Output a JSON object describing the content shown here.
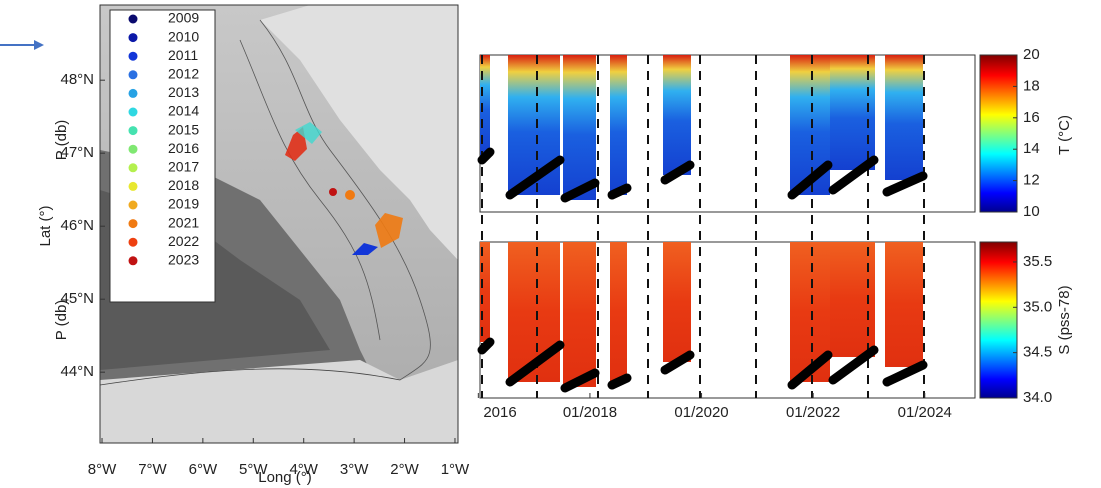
{
  "chart_data": [
    {
      "type": "map",
      "xlabel": "Long (°)",
      "ylabel": "Lat (°)",
      "xlim": [
        -8.04,
        -0.94
      ],
      "xticks": [
        {
          "value": -8,
          "label": "8°W"
        },
        {
          "value": -7,
          "label": "7°W"
        },
        {
          "value": -6,
          "label": "6°W"
        },
        {
          "value": -5,
          "label": "5°W"
        },
        {
          "value": -4,
          "label": "4°W"
        },
        {
          "value": -3,
          "label": "3°W"
        },
        {
          "value": -2,
          "label": "2°W"
        },
        {
          "value": -1,
          "label": "1°W"
        }
      ],
      "ylim": [
        43.03,
        49.03
      ],
      "yticks": [
        {
          "value": 44,
          "label": "44°N"
        },
        {
          "value": 45,
          "label": "45°N"
        },
        {
          "value": 46,
          "label": "46°N"
        },
        {
          "value": 47,
          "label": "47°N"
        },
        {
          "value": 48,
          "label": "48°N"
        }
      ],
      "legend": "upper left",
      "series": [
        {
          "name": "2009",
          "color": "#0a0a6e"
        },
        {
          "name": "2010",
          "color": "#0b18a8"
        },
        {
          "name": "2011",
          "color": "#1236d8"
        },
        {
          "name": "2012",
          "color": "#2a70e2"
        },
        {
          "name": "2013",
          "color": "#27a2e4"
        },
        {
          "name": "2014",
          "color": "#2fd8e2"
        },
        {
          "name": "2015",
          "color": "#45e2b0"
        },
        {
          "name": "2016",
          "color": "#80e872"
        },
        {
          "name": "2017",
          "color": "#b4f04e"
        },
        {
          "name": "2018",
          "color": "#e8e830"
        },
        {
          "name": "2019",
          "color": "#f0aa20"
        },
        {
          "name": "2021",
          "color": "#f07a12"
        },
        {
          "name": "2022",
          "color": "#ee4010"
        },
        {
          "name": "2023",
          "color": "#c01212"
        }
      ]
    },
    {
      "type": "heatmap",
      "ylabel": "P (db)",
      "colorbar_label": "T (°C)",
      "xlim": [
        2016.03,
        2024.9
      ],
      "clim": [
        10,
        20
      ],
      "cticks": [
        10,
        12,
        14,
        16,
        18,
        20
      ]
    },
    {
      "type": "heatmap",
      "ylabel": "P (db)",
      "colorbar_label": "S (pss-78)",
      "xlim": [
        2016.03,
        2024.9
      ],
      "xticks": [
        {
          "value": 2016,
          "label": "2016"
        },
        {
          "value": 2018,
          "label": "01/2018"
        },
        {
          "value": 2020,
          "label": "01/2020"
        },
        {
          "value": 2022,
          "label": "01/2022"
        },
        {
          "value": 2024,
          "label": "01/2024"
        }
      ],
      "clim": [
        34.0,
        35.72
      ],
      "cticks": [
        {
          "value": 34,
          "label": "34.0"
        },
        {
          "value": 34.5,
          "label": "34.5"
        },
        {
          "value": 35,
          "label": "35.0"
        },
        {
          "value": 35.5,
          "label": "35.5"
        }
      ]
    }
  ]
}
